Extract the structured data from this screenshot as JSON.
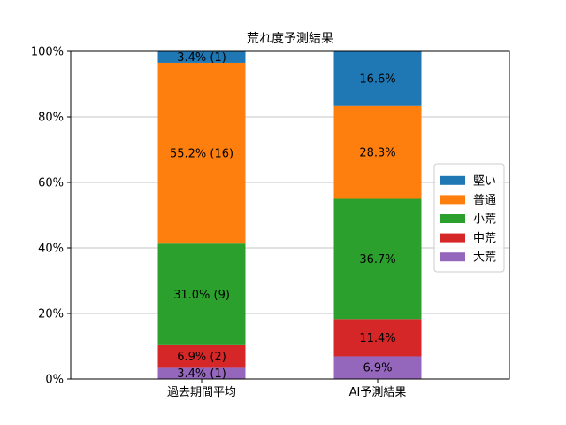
{
  "chart_data": {
    "type": "bar",
    "stacked": true,
    "title": "荒れ度予測結果",
    "xlabel": "",
    "ylabel": "",
    "ylim": [
      0,
      100
    ],
    "yticks": [
      "0%",
      "20%",
      "40%",
      "60%",
      "80%",
      "100%"
    ],
    "grid": "horizontal",
    "legend_position": "right",
    "categories": [
      "過去期間平均",
      "AI予測結果"
    ],
    "series": [
      {
        "name": "大荒",
        "color": "#9467bd",
        "values": [
          3.4,
          6.9
        ],
        "labels": [
          "3.4% (1)",
          "6.9%"
        ]
      },
      {
        "name": "中荒",
        "color": "#d62728",
        "values": [
          6.9,
          11.4
        ],
        "labels": [
          "6.9% (2)",
          "11.4%"
        ]
      },
      {
        "name": "小荒",
        "color": "#2ca02c",
        "values": [
          31.0,
          36.7
        ],
        "labels": [
          "31.0% (9)",
          "36.7%"
        ]
      },
      {
        "name": "普通",
        "color": "#ff7f0e",
        "values": [
          55.2,
          28.3
        ],
        "labels": [
          "55.2% (16)",
          "28.3%"
        ]
      },
      {
        "name": "堅い",
        "color": "#1f77b4",
        "values": [
          3.4,
          16.6
        ],
        "labels": [
          "3.4% (1)",
          "16.6%"
        ]
      }
    ],
    "legend_order": [
      "堅い",
      "普通",
      "小荒",
      "中荒",
      "大荒"
    ]
  }
}
